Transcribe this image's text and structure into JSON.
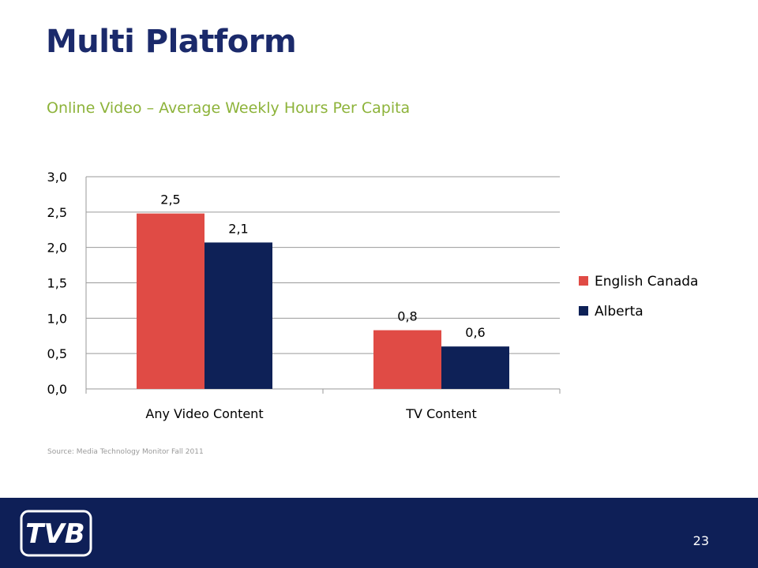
{
  "slide": {
    "title": "Multi Platform",
    "subtitle": "Online Video – Average Weekly Hours Per Capita",
    "source": "Source: Media Technology Monitor Fall 2011",
    "page_number": "23",
    "logo_text": "TVB"
  },
  "colors": {
    "title": "#1b2a6b",
    "subtitle": "#8db33a",
    "english_canada": "#e04b45",
    "alberta": "#0e2157",
    "footer": "#0e1f57"
  },
  "chart_data": {
    "type": "bar",
    "title": "",
    "xlabel": "",
    "ylabel": "",
    "categories": [
      "Any Video Content",
      "TV Content"
    ],
    "series": [
      {
        "name": "English Canada",
        "values": [
          2.48,
          0.83
        ],
        "labels": [
          "2,5",
          "0,8"
        ],
        "color": "#e04b45"
      },
      {
        "name": "Alberta",
        "values": [
          2.07,
          0.6
        ],
        "labels": [
          "2,1",
          "0,6"
        ],
        "color": "#0e2157"
      }
    ],
    "ylim": [
      0,
      3
    ],
    "yticks": [
      0,
      0.5,
      1,
      1.5,
      2,
      2.5,
      3
    ],
    "ytick_labels": [
      "0,0",
      "0,5",
      "1,0",
      "1,5",
      "2,0",
      "2,5",
      "3,0"
    ],
    "grid": true,
    "legend": "right"
  }
}
